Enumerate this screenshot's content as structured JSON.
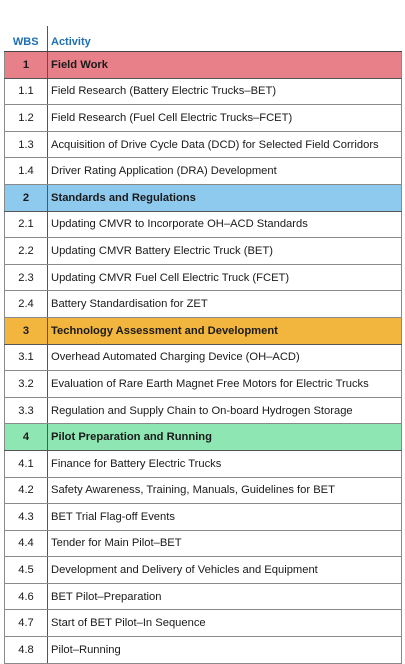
{
  "header": {
    "wbs": "WBS",
    "activity": "Activity"
  },
  "rows": [
    {
      "wbs": "1",
      "activity": "Field Work",
      "section": true,
      "color": "#e8808a"
    },
    {
      "wbs": "1.1",
      "activity": "Field Research (Battery Electric Trucks–BET)"
    },
    {
      "wbs": "1.2",
      "activity": "Field Research (Fuel Cell Electric Trucks–FCET)"
    },
    {
      "wbs": "1.3",
      "activity": "Acquisition of Drive Cycle Data (DCD) for Selected Field Corridors"
    },
    {
      "wbs": "1.4",
      "activity": "Driver Rating Application (DRA) Development"
    },
    {
      "wbs": "2",
      "activity": "Standards and Regulations",
      "section": true,
      "color": "#8ec9ee"
    },
    {
      "wbs": "2.1",
      "activity": "Updating CMVR to Incorporate OH–ACD Standards"
    },
    {
      "wbs": "2.2",
      "activity": "Updating CMVR Battery Electric Truck (BET)"
    },
    {
      "wbs": "2.3",
      "activity": "Updating CMVR Fuel Cell Electric Truck (FCET)"
    },
    {
      "wbs": "2.4",
      "activity": "Battery Standardisation for ZET"
    },
    {
      "wbs": "3",
      "activity": "Technology Assessment and Development",
      "section": true,
      "color": "#f2b63f"
    },
    {
      "wbs": "3.1",
      "activity": "Overhead Automated Charging Device (OH–ACD)"
    },
    {
      "wbs": "3.2",
      "activity": "Evaluation of Rare Earth Magnet Free Motors for Electric Trucks"
    },
    {
      "wbs": "3.3",
      "activity": "Regulation and Supply Chain to On-board Hydrogen Storage"
    },
    {
      "wbs": "4",
      "activity": "Pilot Preparation and Running",
      "section": true,
      "color": "#8ee6b3"
    },
    {
      "wbs": "4.1",
      "activity": "Finance for Battery Electric Trucks"
    },
    {
      "wbs": "4.2",
      "activity": "Safety Awareness, Training, Manuals, Guidelines for BET"
    },
    {
      "wbs": "4.3",
      "activity": "BET Trial Flag-off Events"
    },
    {
      "wbs": "4.4",
      "activity": "Tender for Main Pilot–BET"
    },
    {
      "wbs": "4.5",
      "activity": "Development and Delivery of Vehicles and Equipment"
    },
    {
      "wbs": "4.6",
      "activity": "BET Pilot–Preparation"
    },
    {
      "wbs": "4.7",
      "activity": "Start of BET Pilot–In Sequence"
    },
    {
      "wbs": "4.8",
      "activity": "Pilot–Running"
    }
  ]
}
